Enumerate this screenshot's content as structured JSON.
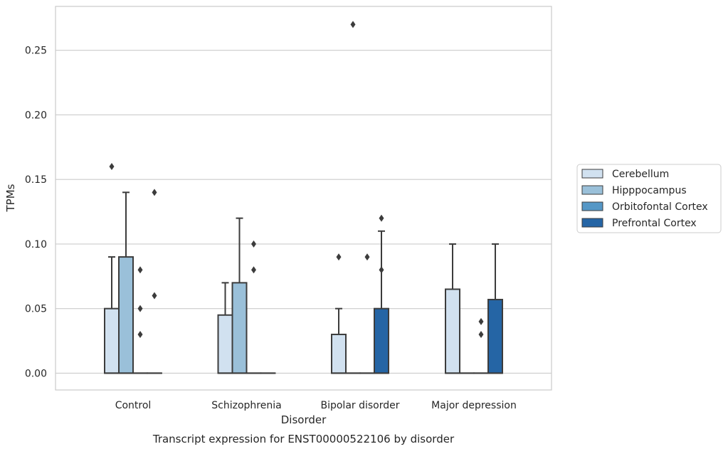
{
  "chart_data": {
    "type": "box",
    "caption": "Transcript expression for ENST00000522106 by disorder",
    "xlabel": "Disorder",
    "ylabel": "TPMs",
    "categories": [
      "Control",
      "Schizophrenia",
      "Bipolar disorder",
      "Major depression"
    ],
    "ylim": [
      -0.013,
      0.284
    ],
    "yticks": [
      0.0,
      0.05,
      0.1,
      0.15,
      0.2,
      0.25
    ],
    "ytick_labels": [
      "0.00",
      "0.05",
      "0.10",
      "0.15",
      "0.20",
      "0.25"
    ],
    "grid": true,
    "legend_position": "right, outside plot",
    "series": [
      {
        "name": "Cerebellum",
        "color": "#d1e1f0",
        "boxes": [
          {
            "q1": 0.0,
            "median": 0.0,
            "q3": 0.05,
            "whislo": 0.0,
            "whishi": 0.09,
            "fliers": [
              0.16
            ]
          },
          {
            "q1": 0.0,
            "median": 0.0,
            "q3": 0.045,
            "whislo": 0.0,
            "whishi": 0.07,
            "fliers": []
          },
          {
            "q1": 0.0,
            "median": 0.0,
            "q3": 0.03,
            "whislo": 0.0,
            "whishi": 0.05,
            "fliers": [
              0.09
            ]
          },
          {
            "q1": 0.0,
            "median": 0.0,
            "q3": 0.065,
            "whislo": 0.0,
            "whishi": 0.1,
            "fliers": []
          }
        ]
      },
      {
        "name": "Hipppocampus",
        "color": "#9ac0d9",
        "boxes": [
          {
            "q1": 0.0,
            "median": 0.0,
            "q3": 0.09,
            "whislo": 0.0,
            "whishi": 0.14,
            "fliers": []
          },
          {
            "q1": 0.0,
            "median": 0.0,
            "q3": 0.07,
            "whislo": 0.0,
            "whishi": 0.12,
            "fliers": []
          },
          {
            "q1": 0.0,
            "median": 0.0,
            "q3": 0.0,
            "whislo": 0.0,
            "whishi": 0.0,
            "fliers": [
              0.27
            ]
          },
          {
            "q1": 0.0,
            "median": 0.0,
            "q3": 0.0,
            "whislo": 0.0,
            "whishi": 0.0,
            "fliers": []
          }
        ]
      },
      {
        "name": "Orbitofontal Cortex",
        "color": "#5597c6",
        "boxes": [
          {
            "q1": 0.0,
            "median": 0.0,
            "q3": 0.0,
            "whislo": 0.0,
            "whishi": 0.0,
            "fliers": [
              0.08,
              0.05,
              0.03
            ]
          },
          {
            "q1": 0.0,
            "median": 0.0,
            "q3": 0.0,
            "whislo": 0.0,
            "whishi": 0.0,
            "fliers": [
              0.1,
              0.08
            ]
          },
          {
            "q1": 0.0,
            "median": 0.0,
            "q3": 0.0,
            "whislo": 0.0,
            "whishi": 0.0,
            "fliers": [
              0.09
            ]
          },
          {
            "q1": 0.0,
            "median": 0.0,
            "q3": 0.0,
            "whislo": 0.0,
            "whishi": 0.0,
            "fliers": [
              0.04,
              0.03
            ]
          }
        ]
      },
      {
        "name": "Prefrontal Cortex",
        "color": "#2565a5",
        "boxes": [
          {
            "q1": 0.0,
            "median": 0.0,
            "q3": 0.0,
            "whislo": 0.0,
            "whishi": 0.0,
            "fliers": [
              0.14,
              0.06
            ]
          },
          {
            "q1": 0.0,
            "median": 0.0,
            "q3": 0.0,
            "whislo": 0.0,
            "whishi": 0.0,
            "fliers": []
          },
          {
            "q1": 0.0,
            "median": 0.0,
            "q3": 0.05,
            "whislo": 0.0,
            "whishi": 0.11,
            "fliers": [
              0.12,
              0.08
            ]
          },
          {
            "q1": 0.0,
            "median": 0.0,
            "q3": 0.057,
            "whislo": 0.0,
            "whishi": 0.1,
            "fliers": []
          }
        ]
      }
    ]
  }
}
